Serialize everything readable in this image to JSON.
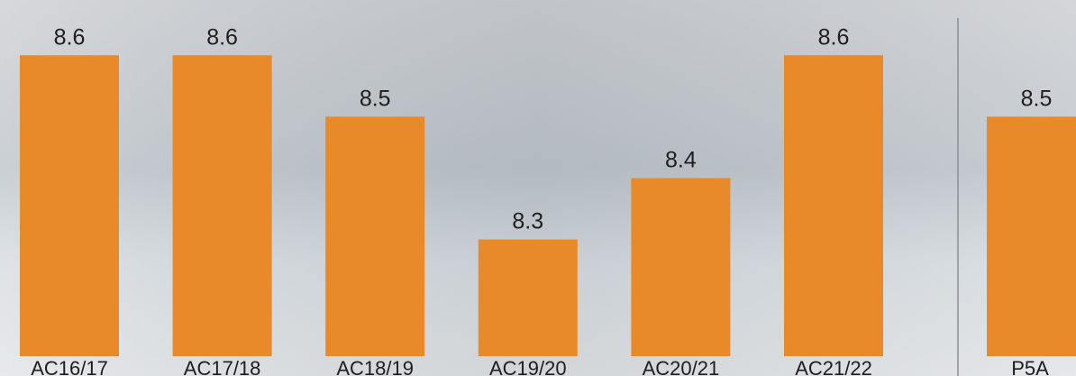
{
  "chart_data": {
    "type": "bar",
    "categories": [
      "AC16/17",
      "AC17/18",
      "AC18/19",
      "AC19/20",
      "AC20/21",
      "AC21/22",
      "P5A"
    ],
    "values": [
      8.6,
      8.6,
      8.5,
      8.3,
      8.4,
      8.6,
      8.5
    ],
    "color": "#e8892a",
    "ylim": [
      8.11,
      8.69
    ]
  }
}
